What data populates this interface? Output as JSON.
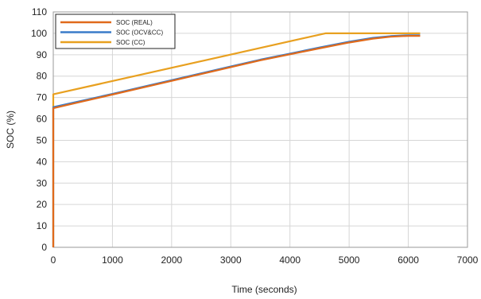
{
  "chart_data": {
    "type": "line",
    "xlabel": "Time (seconds)",
    "ylabel": "SOC (%)",
    "xlim": [
      0,
      7000
    ],
    "ylim": [
      0,
      110
    ],
    "xticks": [
      "0",
      "1000",
      "2000",
      "3000",
      "4000",
      "5000",
      "6000",
      "7000"
    ],
    "yticks": [
      "0",
      "10",
      "20",
      "30",
      "40",
      "50",
      "60",
      "70",
      "80",
      "90",
      "100",
      "110"
    ],
    "grid": true,
    "legend_position": "top-left",
    "series": [
      {
        "name": "SOC (REAL)",
        "color": "#e06a1b",
        "x": [
          0,
          0,
          500,
          1000,
          1500,
          2000,
          2500,
          3000,
          3500,
          4000,
          4500,
          5000,
          5400,
          5700,
          5900,
          6000,
          6200
        ],
        "y": [
          0,
          65,
          68.2,
          71.4,
          74.6,
          77.8,
          81,
          84.2,
          87.4,
          90.2,
          93,
          95.7,
          97.5,
          98.4,
          98.7,
          98.8,
          98.8
        ]
      },
      {
        "name": "SOC (OCV&CC)",
        "color": "#3a7cc9",
        "x": [
          0,
          0,
          500,
          1000,
          1500,
          2000,
          2500,
          3000,
          3500,
          4000,
          4500,
          5000,
          5400,
          5700,
          5900,
          6000,
          6200
        ],
        "y": [
          0,
          65.5,
          68.6,
          71.7,
          74.9,
          78.1,
          81.3,
          84.5,
          87.7,
          90.5,
          93.4,
          96.1,
          97.9,
          98.7,
          99,
          99.1,
          99.1
        ]
      },
      {
        "name": "SOC (CC)",
        "color": "#e8a020",
        "x": [
          0,
          0,
          4600,
          6200
        ],
        "y": [
          0,
          71.5,
          100,
          100
        ]
      }
    ]
  }
}
